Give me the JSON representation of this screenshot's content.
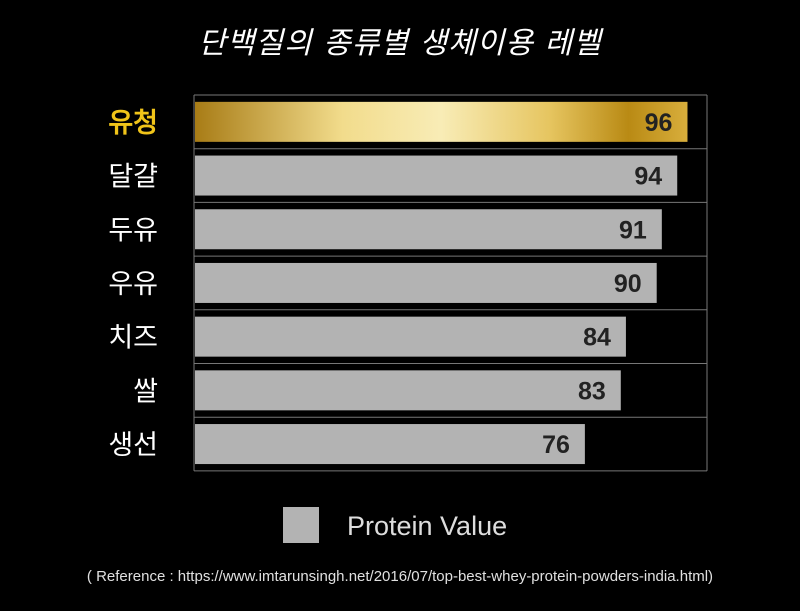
{
  "title": "단백질의 종류별 생체이용 레벨",
  "reference": "( Reference : https://www.imtarunsingh.net/2016/07/top-best-whey-protein-powders-india.html)",
  "colors": {
    "background": "#000000",
    "bar": "#b3b3b3",
    "highlight_gold_dark": "#b8860b",
    "highlight_gold_light": "#f7e9a8",
    "highlight_label": "#f0c419",
    "grid": "#777777"
  },
  "chart_data": {
    "type": "bar",
    "orientation": "horizontal",
    "categories": [
      "유청",
      "달걀",
      "두유",
      "우유",
      "치즈",
      "쌀",
      "생선"
    ],
    "values": [
      96,
      94,
      91,
      90,
      84,
      83,
      76
    ],
    "highlighted_category": "유청",
    "series": [
      {
        "name": "Protein Value",
        "values": [
          96,
          94,
          91,
          90,
          84,
          83,
          76
        ]
      }
    ],
    "legend": {
      "label": "Protein Value",
      "position": "bottom"
    },
    "xlim": [
      0,
      100
    ],
    "grid": true
  }
}
